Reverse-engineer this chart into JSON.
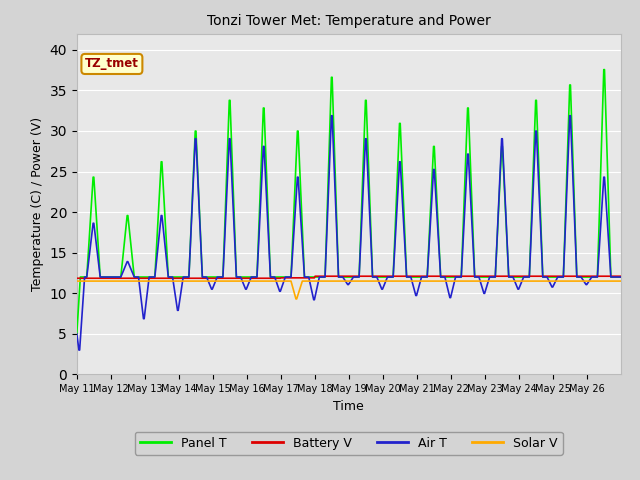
{
  "title": "Tonzi Tower Met: Temperature and Power",
  "xlabel": "Time",
  "ylabel": "Temperature (C) / Power (V)",
  "ylim": [
    0,
    42
  ],
  "yticks": [
    0,
    5,
    10,
    15,
    20,
    25,
    30,
    35,
    40
  ],
  "watermark": "TZ_tmet",
  "bg_color": "#e0e0e0",
  "plot_bg_color": "#e8e8e8",
  "legend_items": [
    "Panel T",
    "Battery V",
    "Air T",
    "Solar V"
  ],
  "legend_colors": [
    "#00ee00",
    "#dd0000",
    "#2222cc",
    "#ffaa00"
  ],
  "xtick_labels": [
    "May 11",
    "May 12",
    "May 13",
    "May 14",
    "May 15",
    "May 16",
    "May 17",
    "May 18",
    "May 19",
    "May 20",
    "May 21",
    "May 22",
    "May 23",
    "May 24",
    "May 25",
    "May 26"
  ],
  "n_days": 16,
  "panel_peaks": [
    25,
    20,
    27,
    31,
    35,
    34,
    31,
    38,
    35,
    32,
    29,
    34,
    29,
    35,
    37,
    39
  ],
  "air_peaks": [
    19,
    14,
    20,
    30,
    30,
    29,
    25,
    33,
    30,
    27,
    26,
    28,
    30,
    31,
    33,
    25
  ],
  "panel_T_color": "#00ee00",
  "battery_V_color": "#dd0000",
  "air_T_color": "#2222cc",
  "solar_V_color": "#ffaa00",
  "linewidth": 1.2
}
